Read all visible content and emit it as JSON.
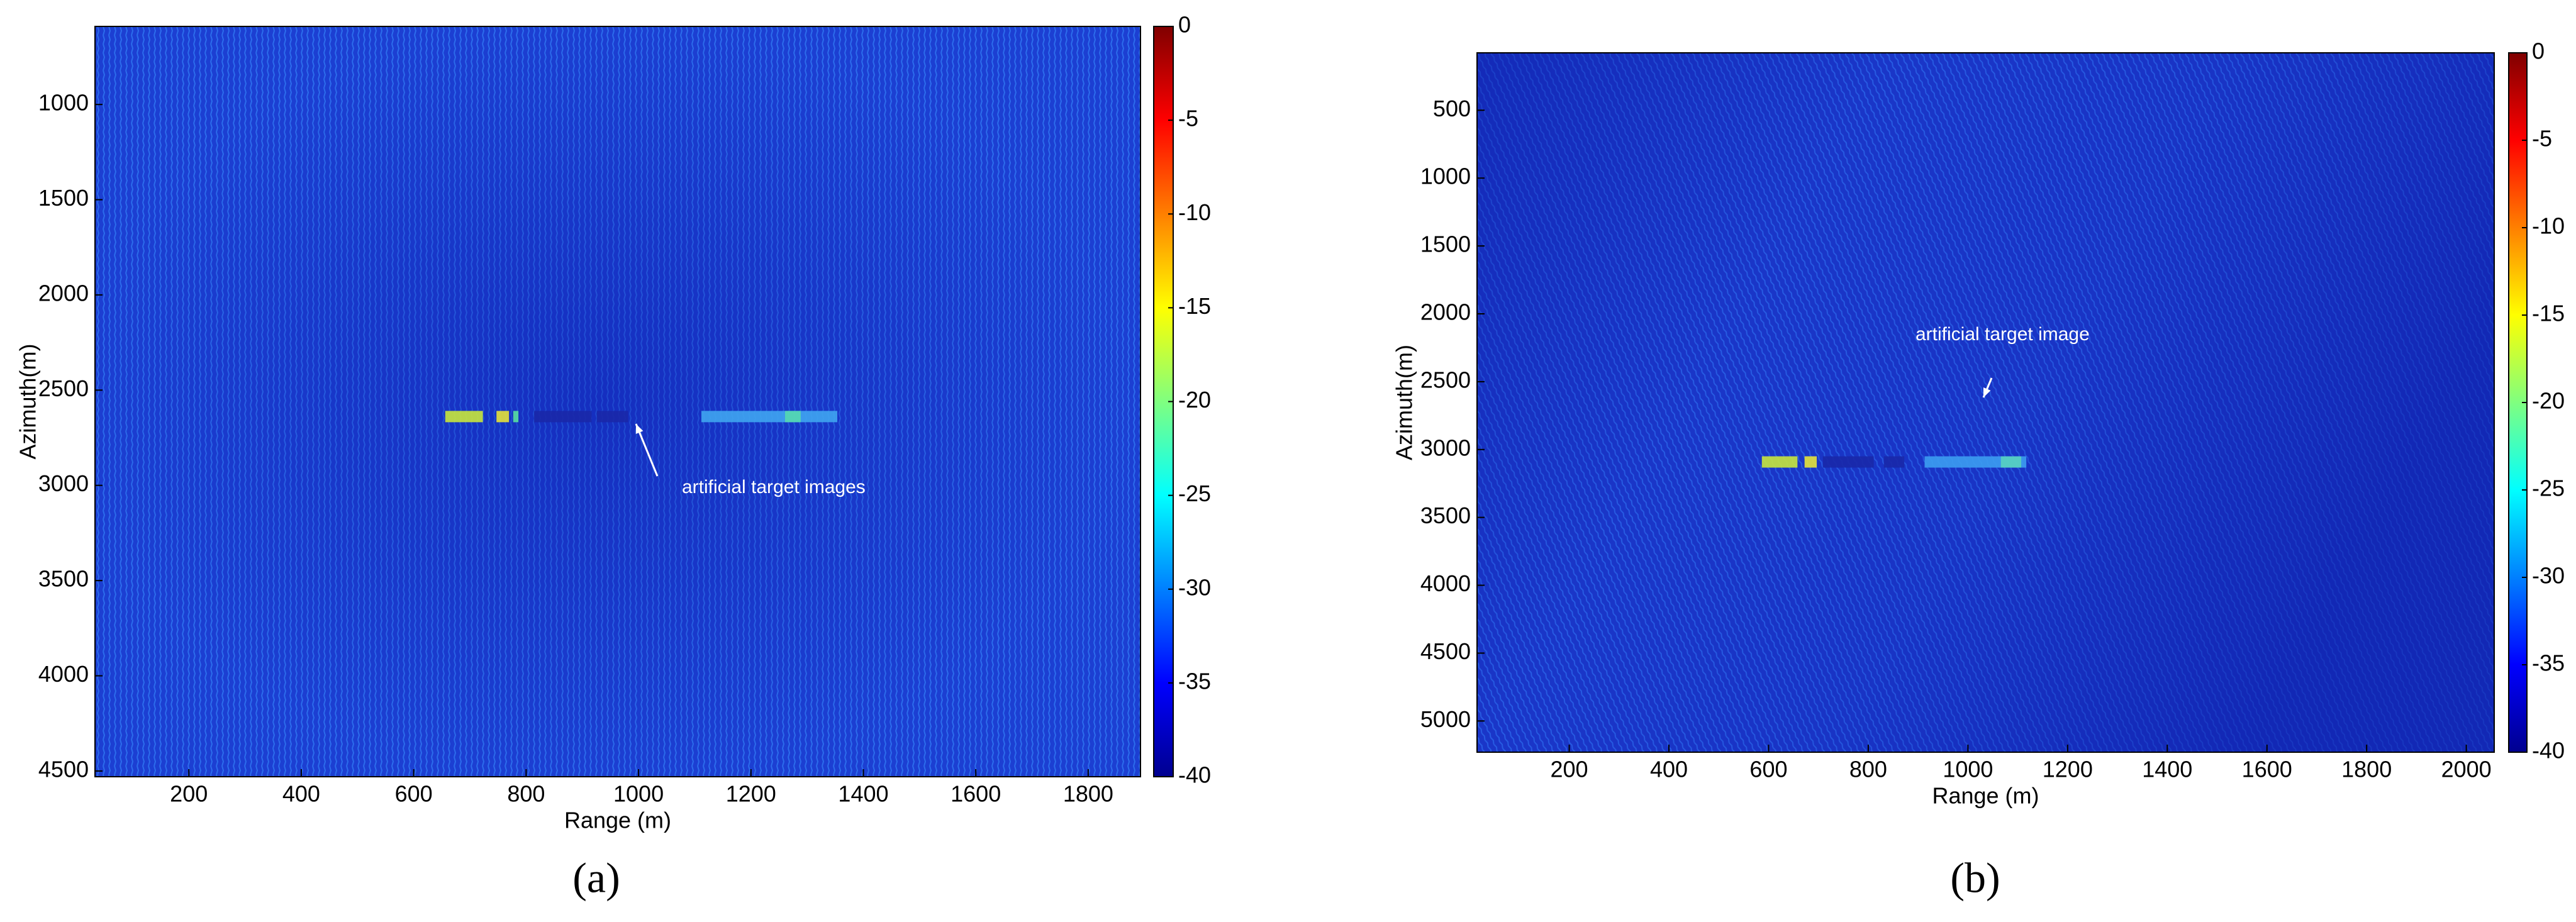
{
  "chart_data": [
    {
      "type": "heatmap",
      "panel_label": "(a)",
      "xlabel": "Range (m)",
      "ylabel": "Azimuth(m)",
      "xlim": [
        33,
        1893
      ],
      "xticks": [
        200,
        400,
        600,
        800,
        1000,
        1200,
        1400,
        1600,
        1800
      ],
      "ylim": [
        590,
        4530
      ],
      "yticks": [
        1000,
        1500,
        2000,
        2500,
        3000,
        3500,
        4000,
        4500
      ],
      "clim": [
        -40,
        0
      ],
      "cticks": [
        0,
        -5,
        -10,
        -15,
        -20,
        -25,
        -30,
        -35,
        -40
      ],
      "colormap": "jet",
      "annotation": "artificial target images"
    },
    {
      "type": "heatmap",
      "panel_label": "(b)",
      "xlabel": "Range (m)",
      "ylabel": "Azimuth(m)",
      "xlim": [
        15,
        2056
      ],
      "xticks": [
        200,
        400,
        600,
        800,
        1000,
        1200,
        1400,
        1600,
        1800,
        2000
      ],
      "ylim": [
        77,
        5230
      ],
      "yticks": [
        500,
        1000,
        1500,
        2000,
        2500,
        3000,
        3500,
        4000,
        4500,
        5000
      ],
      "clim": [
        -40,
        0
      ],
      "cticks": [
        0,
        -5,
        -10,
        -15,
        -20,
        -25,
        -30,
        -35,
        -40
      ],
      "colormap": "jet",
      "annotation": "artificial target image"
    }
  ]
}
